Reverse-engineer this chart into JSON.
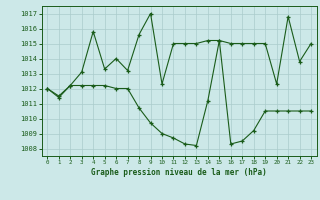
{
  "title": "Graphe pression niveau de la mer (hPa)",
  "background_color": "#cce8e8",
  "grid_color": "#aacccc",
  "line_color": "#1a5c1a",
  "xlim": [
    -0.5,
    23.5
  ],
  "ylim": [
    1007.5,
    1017.5
  ],
  "yticks": [
    1008,
    1009,
    1010,
    1011,
    1012,
    1013,
    1014,
    1015,
    1016,
    1017
  ],
  "xticks": [
    0,
    1,
    2,
    3,
    4,
    5,
    6,
    7,
    8,
    9,
    10,
    11,
    12,
    13,
    14,
    15,
    16,
    17,
    18,
    19,
    20,
    21,
    22,
    23
  ],
  "s1_y": [
    1012.0,
    1011.5,
    1012.2,
    1013.1,
    1015.8,
    1013.3,
    1014.0,
    1013.2,
    1015.6,
    1017.0,
    1012.3,
    1015.0,
    1015.0,
    1015.0,
    1015.2,
    1015.2,
    1015.0,
    1015.0,
    1015.0,
    1015.0,
    1012.3,
    1016.8,
    1013.8,
    1015.0
  ],
  "s2_y": [
    1012.0,
    1011.4,
    1012.2,
    1012.2,
    1012.2,
    1012.2,
    1012.0,
    1012.0,
    1010.7,
    1009.7,
    1009.0,
    1008.7,
    1008.3,
    1008.2,
    1011.2,
    1015.2,
    1008.3,
    1008.5,
    1009.2,
    1010.5,
    1010.5,
    1010.5,
    1010.5,
    1010.5
  ]
}
